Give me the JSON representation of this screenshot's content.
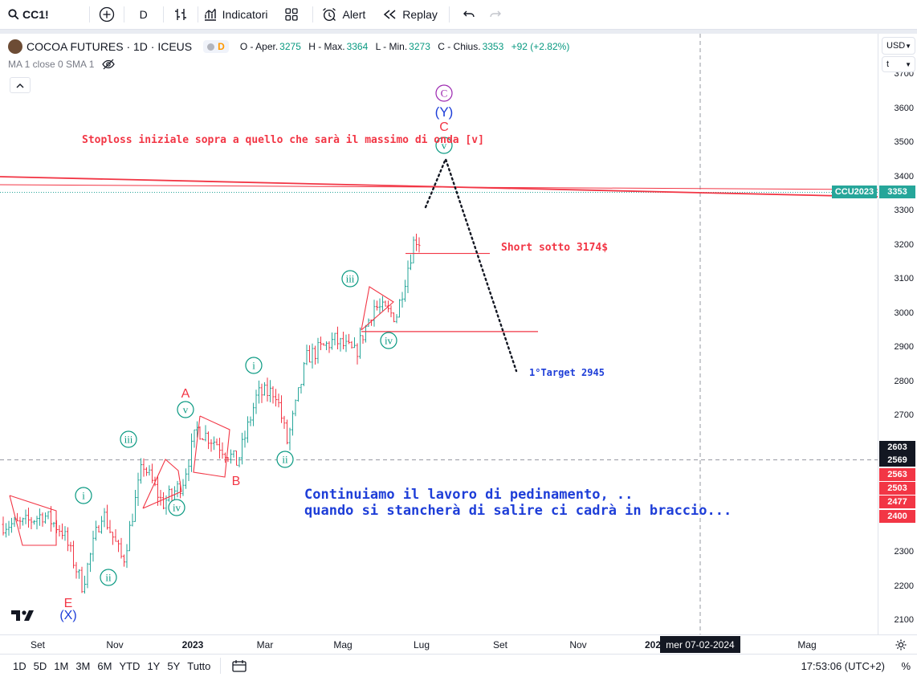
{
  "toolbar": {
    "symbol": "CC1!",
    "interval": "D",
    "indicators_label": "Indicatori",
    "alert_label": "Alert",
    "replay_label": "Replay"
  },
  "legend": {
    "title": "COCOA FUTURES · 1D · ICEUS",
    "badge": "D",
    "ohlc": {
      "o_label": "O - Aper.",
      "o": "3275",
      "h_label": "H - Max.",
      "h": "3364",
      "l_label": "L - Min.",
      "l": "3273",
      "c_label": "C - Chius.",
      "c": "3353",
      "change": "+92 (+2.82%)"
    },
    "indicator": "MA 1 close 0 SMA 1"
  },
  "price_axis": {
    "currency": "USD",
    "unit": "t",
    "ticks": [
      "3700",
      "3600",
      "3500",
      "3400",
      "3300",
      "3200",
      "3100",
      "3000",
      "2900",
      "2800",
      "2700",
      "2300",
      "2200",
      "2100"
    ],
    "labels": [
      {
        "text": "3353",
        "value": 3353,
        "color": "#26a69a"
      },
      {
        "text": "2603",
        "value": 2603,
        "color": "#131722"
      },
      {
        "text": "2569",
        "value": 2569,
        "color": "#131722"
      },
      {
        "text": "2563",
        "value": 2563,
        "color": "#f23645"
      },
      {
        "text": "2503",
        "value": 2503,
        "color": "#f23645"
      },
      {
        "text": "2477",
        "value": 2477,
        "color": "#f23645"
      },
      {
        "text": "2400",
        "value": 2400,
        "color": "#f23645"
      }
    ],
    "series_tag": "CCU2023"
  },
  "time_axis": {
    "ticks": [
      "Set",
      "Nov",
      "2023",
      "Mar",
      "Mag",
      "Lug",
      "Set",
      "Nov",
      "202",
      "Mag"
    ],
    "crosshair_date": "mer 07-02-2024"
  },
  "bottom_bar": {
    "ranges": [
      "1D",
      "5D",
      "1M",
      "3M",
      "6M",
      "YTD",
      "1Y",
      "5Y",
      "Tutto"
    ],
    "clock": "17:53:06 (UTC+2)",
    "percent": "%"
  },
  "annotations": {
    "stoploss": "Stoploss iniziale sopra a quello che sarà il massimo di onda [v]",
    "short": "Short sotto 3174$",
    "target": "1°Target 2945",
    "comment_line1": "Continuiamo il lavoro di pedinamento, ..",
    "comment_line2": "quando si stancherà di salire ci cadrà in braccio..."
  },
  "wave_labels": {
    "E": "E",
    "X": "(X)",
    "i1": "i",
    "ii1": "ii",
    "iii1": "iii",
    "iv1": "iv",
    "v1": "v",
    "A": "A",
    "B": "B",
    "i2": "i",
    "ii2": "ii",
    "iii2": "iii",
    "iv2": "iv",
    "v2": "v",
    "C_circle": "C",
    "Y": "(Y)",
    "C": "C"
  },
  "colors": {
    "up": "#26a69a",
    "down": "#f23645",
    "wave": "#089981",
    "annotation_red": "#f23645",
    "comment_blue": "#1e3ed8",
    "purple": "#9c27b0"
  },
  "chart_data": {
    "type": "ohlc",
    "title": "COCOA FUTURES · 1D · ICEUS",
    "ylim": [
      2080,
      3720
    ],
    "x_ticks": [
      "Set",
      "Nov",
      "2023",
      "Mar",
      "Mag",
      "Lug",
      "Set",
      "Nov",
      "202",
      "Mag"
    ],
    "last": {
      "open": 3275,
      "high": 3364,
      "low": 3273,
      "close": 3353,
      "change": 92,
      "change_pct": 2.82
    },
    "close_path": [
      {
        "date": "2022-08-20",
        "close": 2380
      },
      {
        "date": "2022-09-05",
        "close": 2410
      },
      {
        "date": "2022-09-20",
        "close": 2360
      },
      {
        "date": "2022-10-05",
        "close": 2200
      },
      {
        "date": "2022-10-20",
        "close": 2420
      },
      {
        "date": "2022-11-05",
        "close": 2270
      },
      {
        "date": "2022-11-20",
        "close": 2560
      },
      {
        "date": "2022-12-05",
        "close": 2440
      },
      {
        "date": "2022-12-20",
        "close": 2500
      },
      {
        "date": "2022-12-31",
        "close": 2660
      },
      {
        "date": "2023-01-15",
        "close": 2620
      },
      {
        "date": "2023-01-31",
        "close": 2560
      },
      {
        "date": "2023-02-15",
        "close": 2760
      },
      {
        "date": "2023-03-01",
        "close": 2770
      },
      {
        "date": "2023-03-10",
        "close": 2620
      },
      {
        "date": "2023-03-25",
        "close": 2870
      },
      {
        "date": "2023-04-15",
        "close": 2920
      },
      {
        "date": "2023-05-01",
        "close": 2880
      },
      {
        "date": "2023-05-15",
        "close": 3020
      },
      {
        "date": "2023-06-01",
        "close": 2990
      },
      {
        "date": "2023-06-15",
        "close": 3220
      },
      {
        "date": "2023-06-25",
        "close": 3190
      },
      {
        "date": "2023-07-01",
        "close": 3353
      }
    ],
    "levels": [
      {
        "name": "Short sotto 3174$",
        "value": 3174
      },
      {
        "name": "1°Target 2945",
        "value": 2945
      }
    ]
  }
}
